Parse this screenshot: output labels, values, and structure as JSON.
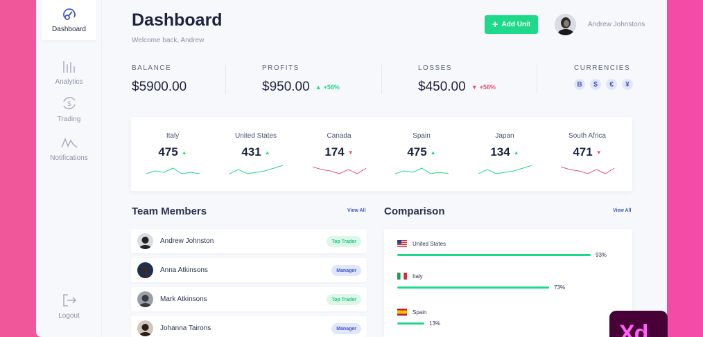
{
  "sidebar": {
    "items": [
      {
        "label": "Dashboard",
        "icon": "gauge-icon",
        "active": true
      },
      {
        "label": "Analytics",
        "icon": "bar-chart-icon"
      },
      {
        "label": "Trading",
        "icon": "exchange-dollar-icon"
      },
      {
        "label": "Notifications",
        "icon": "pulse-icon"
      }
    ],
    "logout": {
      "label": "Logout",
      "icon": "logout-icon"
    }
  },
  "header": {
    "title": "Dashboard",
    "subtitle": "Welcome back, Andrew",
    "add_button": "Add Unit",
    "user_name": "Andrew Johnstons"
  },
  "stats": {
    "balance": {
      "label": "BALANCE",
      "value": "$5900.00"
    },
    "profits": {
      "label": "PROFITS",
      "value": "$950.00",
      "delta": "+56%"
    },
    "losses": {
      "label": "LOSSES",
      "value": "$450.00",
      "delta": "+56%"
    },
    "currencies": {
      "label": "CURRENCIES",
      "symbols": [
        "B",
        "$",
        "€",
        "¥"
      ]
    }
  },
  "countries": [
    {
      "name": "Italy",
      "value": "475",
      "trend": "up",
      "spark": [
        6,
        4,
        5,
        2,
        6,
        5,
        6
      ]
    },
    {
      "name": "United States",
      "value": "431",
      "trend": "up",
      "spark": [
        6,
        3,
        6,
        5,
        4,
        2,
        0
      ]
    },
    {
      "name": "Canada",
      "value": "174",
      "trend": "down",
      "spark": [
        1,
        3,
        4,
        6,
        3,
        6,
        2
      ]
    },
    {
      "name": "Spain",
      "value": "475",
      "trend": "up",
      "spark": [
        6,
        4,
        5,
        2,
        6,
        5,
        6
      ]
    },
    {
      "name": "Japan",
      "value": "134",
      "trend": "up",
      "spark": [
        6,
        3,
        6,
        5,
        4,
        2,
        0
      ]
    },
    {
      "name": "South Africa",
      "value": "471",
      "trend": "down",
      "spark": [
        1,
        3,
        4,
        6,
        3,
        6,
        2
      ]
    }
  ],
  "team": {
    "title": "Team Members",
    "view_all": "View All",
    "members": [
      {
        "name": "Andrew Johnston",
        "role": "Top Trader",
        "color": "green"
      },
      {
        "name": "Anna Atkinsons",
        "role": "Manager",
        "color": "blue"
      },
      {
        "name": "Mark Atkinsons",
        "role": "Top Trader",
        "color": "green"
      },
      {
        "name": "Johanna Tairons",
        "role": "Manager",
        "color": "blue"
      }
    ]
  },
  "comparison": {
    "title": "Comparison",
    "view_all": "View All",
    "rows": [
      {
        "country": "United States",
        "flag": "us-flag-icon",
        "percent": 93,
        "label": "93%"
      },
      {
        "country": "Italy",
        "flag": "italy-flag-icon",
        "percent": 73,
        "label": "73%"
      },
      {
        "country": "Spain",
        "flag": "spain-flag-icon",
        "percent": 13,
        "label": "13%"
      }
    ]
  },
  "badge_logo": "Xd",
  "colors": {
    "accent": "#1fd98a",
    "negative": "#ef4b78",
    "primary_blue": "#3c56c8"
  }
}
